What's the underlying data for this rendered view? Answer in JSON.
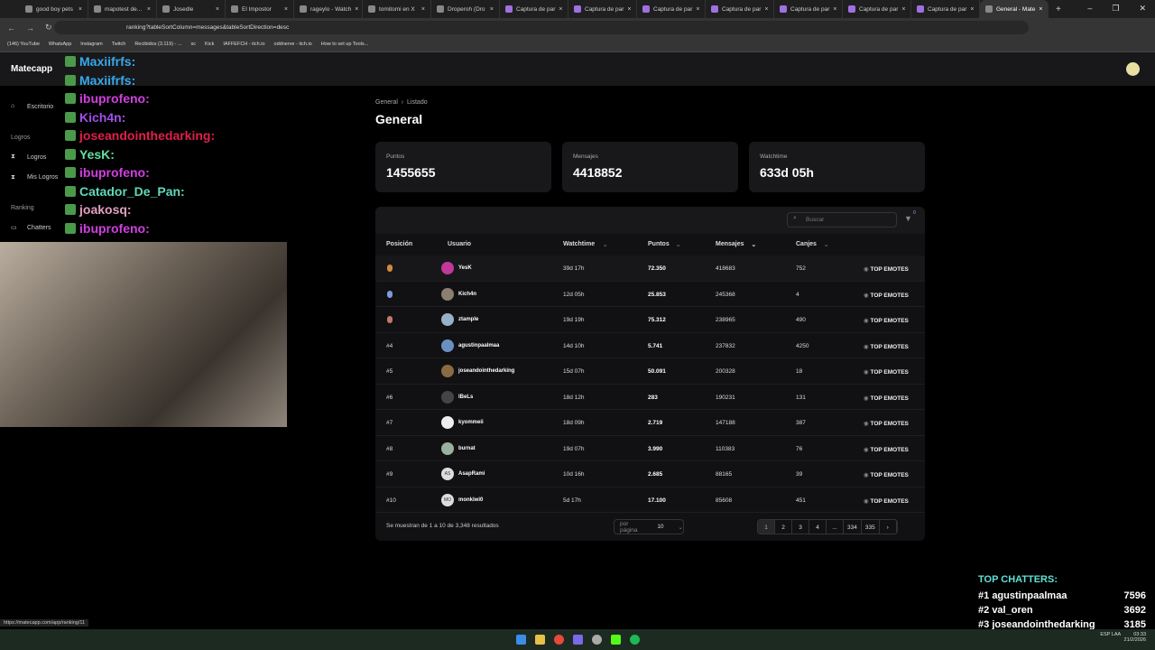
{
  "browser": {
    "tabs": [
      {
        "label": "good boy pets"
      },
      {
        "label": "mapotest de..."
      },
      {
        "label": "Josedle"
      },
      {
        "label": "El Impostor"
      },
      {
        "label": "rageylo - Watch"
      },
      {
        "label": "tomitomi en X"
      },
      {
        "label": "Droperoh (Dro"
      },
      {
        "label": "Captura de par"
      },
      {
        "label": "Captura de par"
      },
      {
        "label": "Captura de par"
      },
      {
        "label": "Captura de par"
      },
      {
        "label": "Captura de par"
      },
      {
        "label": "Captura de par"
      },
      {
        "label": "Captura de par"
      },
      {
        "label": "General - Mate",
        "active": true
      }
    ],
    "url": "ranking?tableSortColumn=messages&tableSortDirection=desc",
    "bookmarks": [
      "(146) YouTube",
      "WhatsApp",
      "Instagram",
      "Twitch",
      "Recibidos (3.119) - ...",
      "sc",
      "Kick",
      "IAFFEFCH - itch.io",
      "oddnerve - itch.io",
      "How to set up Tools..."
    ],
    "status_url": "https://matecapp.com/app/ranking/11"
  },
  "app": {
    "brand": "Matecapp",
    "sidebar": {
      "escritorio": "Escritorio",
      "logros_section": "Logros",
      "logros": "Logros",
      "mis_logros": "Mis Logros",
      "ranking_section": "Ranking",
      "chatters": "Chatters"
    },
    "breadcrumb": [
      "General",
      "Listado"
    ],
    "title": "General",
    "stats": [
      {
        "label": "Puntos",
        "value": "1455655"
      },
      {
        "label": "Mensajes",
        "value": "4418852"
      },
      {
        "label": "Watchtime",
        "value": "633d 05h"
      }
    ],
    "search_placeholder": "Buscar",
    "filter_count": "0",
    "columns": [
      "Posición",
      "Usuario",
      "Watchtime",
      "Puntos",
      "Mensajes",
      "Canjes"
    ],
    "rows": [
      {
        "pos": "",
        "medal": "#d08a3a",
        "user": "YesK",
        "watch": "39d 17h",
        "pts": "72.350",
        "msgs": "418683",
        "canjes": "752",
        "av": "#c0389a"
      },
      {
        "pos": "",
        "medal": "#7f9ad8",
        "user": "Kich4n",
        "watch": "12d 05h",
        "pts": "25.853",
        "msgs": "245368",
        "canjes": "4",
        "av": "#8a8070"
      },
      {
        "pos": "",
        "medal": "#c07a6a",
        "user": "ztample",
        "watch": "19d 19h",
        "pts": "75.312",
        "msgs": "238965",
        "canjes": "490",
        "av": "#9ab0c8"
      },
      {
        "pos": "#4",
        "user": "agustinpaalmaa",
        "watch": "14d 10h",
        "pts": "5.741",
        "msgs": "237832",
        "canjes": "4250",
        "av": "#6a90c0"
      },
      {
        "pos": "#5",
        "user": "joseandointhedarking",
        "watch": "15d 07h",
        "pts": "50.091",
        "msgs": "200328",
        "canjes": "18",
        "av": "#8a6a40"
      },
      {
        "pos": "#6",
        "user": "lBeLs",
        "watch": "18d 12h",
        "pts": "283",
        "msgs": "190231",
        "canjes": "131",
        "av": "#444"
      },
      {
        "pos": "#7",
        "user": "kyommeii",
        "watch": "18d 09h",
        "pts": "2.719",
        "msgs": "147188",
        "canjes": "387",
        "av": "#eee"
      },
      {
        "pos": "#8",
        "user": "burnat",
        "watch": "19d 07h",
        "pts": "3.990",
        "msgs": "110383",
        "canjes": "76",
        "av": "#9ab0a0"
      },
      {
        "pos": "#9",
        "user": "AsapRami",
        "watch": "10d 16h",
        "pts": "2.685",
        "msgs": "88165",
        "canjes": "39",
        "av": "#ddd",
        "initials": "AS"
      },
      {
        "pos": "#10",
        "user": "monkiwi0",
        "watch": "5d 17h",
        "pts": "17.100",
        "msgs": "85608",
        "canjes": "451",
        "av": "#ddd",
        "initials": "MO"
      }
    ],
    "top_emotes": "TOP EMOTES",
    "results_text": "Se muestran de 1 a 10 de 3,348 resultados",
    "per_page_label": "por página",
    "per_page": "10",
    "pages": [
      "1",
      "2",
      "3",
      "4",
      "...",
      "334",
      "335",
      "›"
    ]
  },
  "overlay": {
    "chat": [
      {
        "user": "Maxiifrfs:",
        "color": "#38a8e8"
      },
      {
        "user": "Maxiifrfs:",
        "color": "#38a8e8"
      },
      {
        "user": "ibuprofeno:",
        "color": "#d040e0"
      },
      {
        "user": "Kich4n:",
        "color": "#a050e8"
      },
      {
        "user": "joseandointhedarking:",
        "color": "#e0204a"
      },
      {
        "user": "YesK:",
        "color": "#60e0a0"
      },
      {
        "user": "ibuprofeno:",
        "color": "#d040e0"
      },
      {
        "user": "Catador_De_Pan:",
        "color": "#60d8b8"
      },
      {
        "user": "joakosq:",
        "color": "#e0a0c0"
      },
      {
        "user": "ibuprofeno:",
        "color": "#d040e0"
      }
    ],
    "top_chatters_title": "TOP CHATTERS:",
    "top_chatters": [
      {
        "rank": "#1",
        "name": "agustinpaalmaa",
        "count": "7596"
      },
      {
        "rank": "#2",
        "name": "val_oren",
        "count": "3692"
      },
      {
        "rank": "#3",
        "name": "joseandointhedarking",
        "count": "3185"
      }
    ]
  },
  "taskbar": {
    "lang": "ESP LAA",
    "time": "03:33",
    "date": "21/2/2026"
  }
}
